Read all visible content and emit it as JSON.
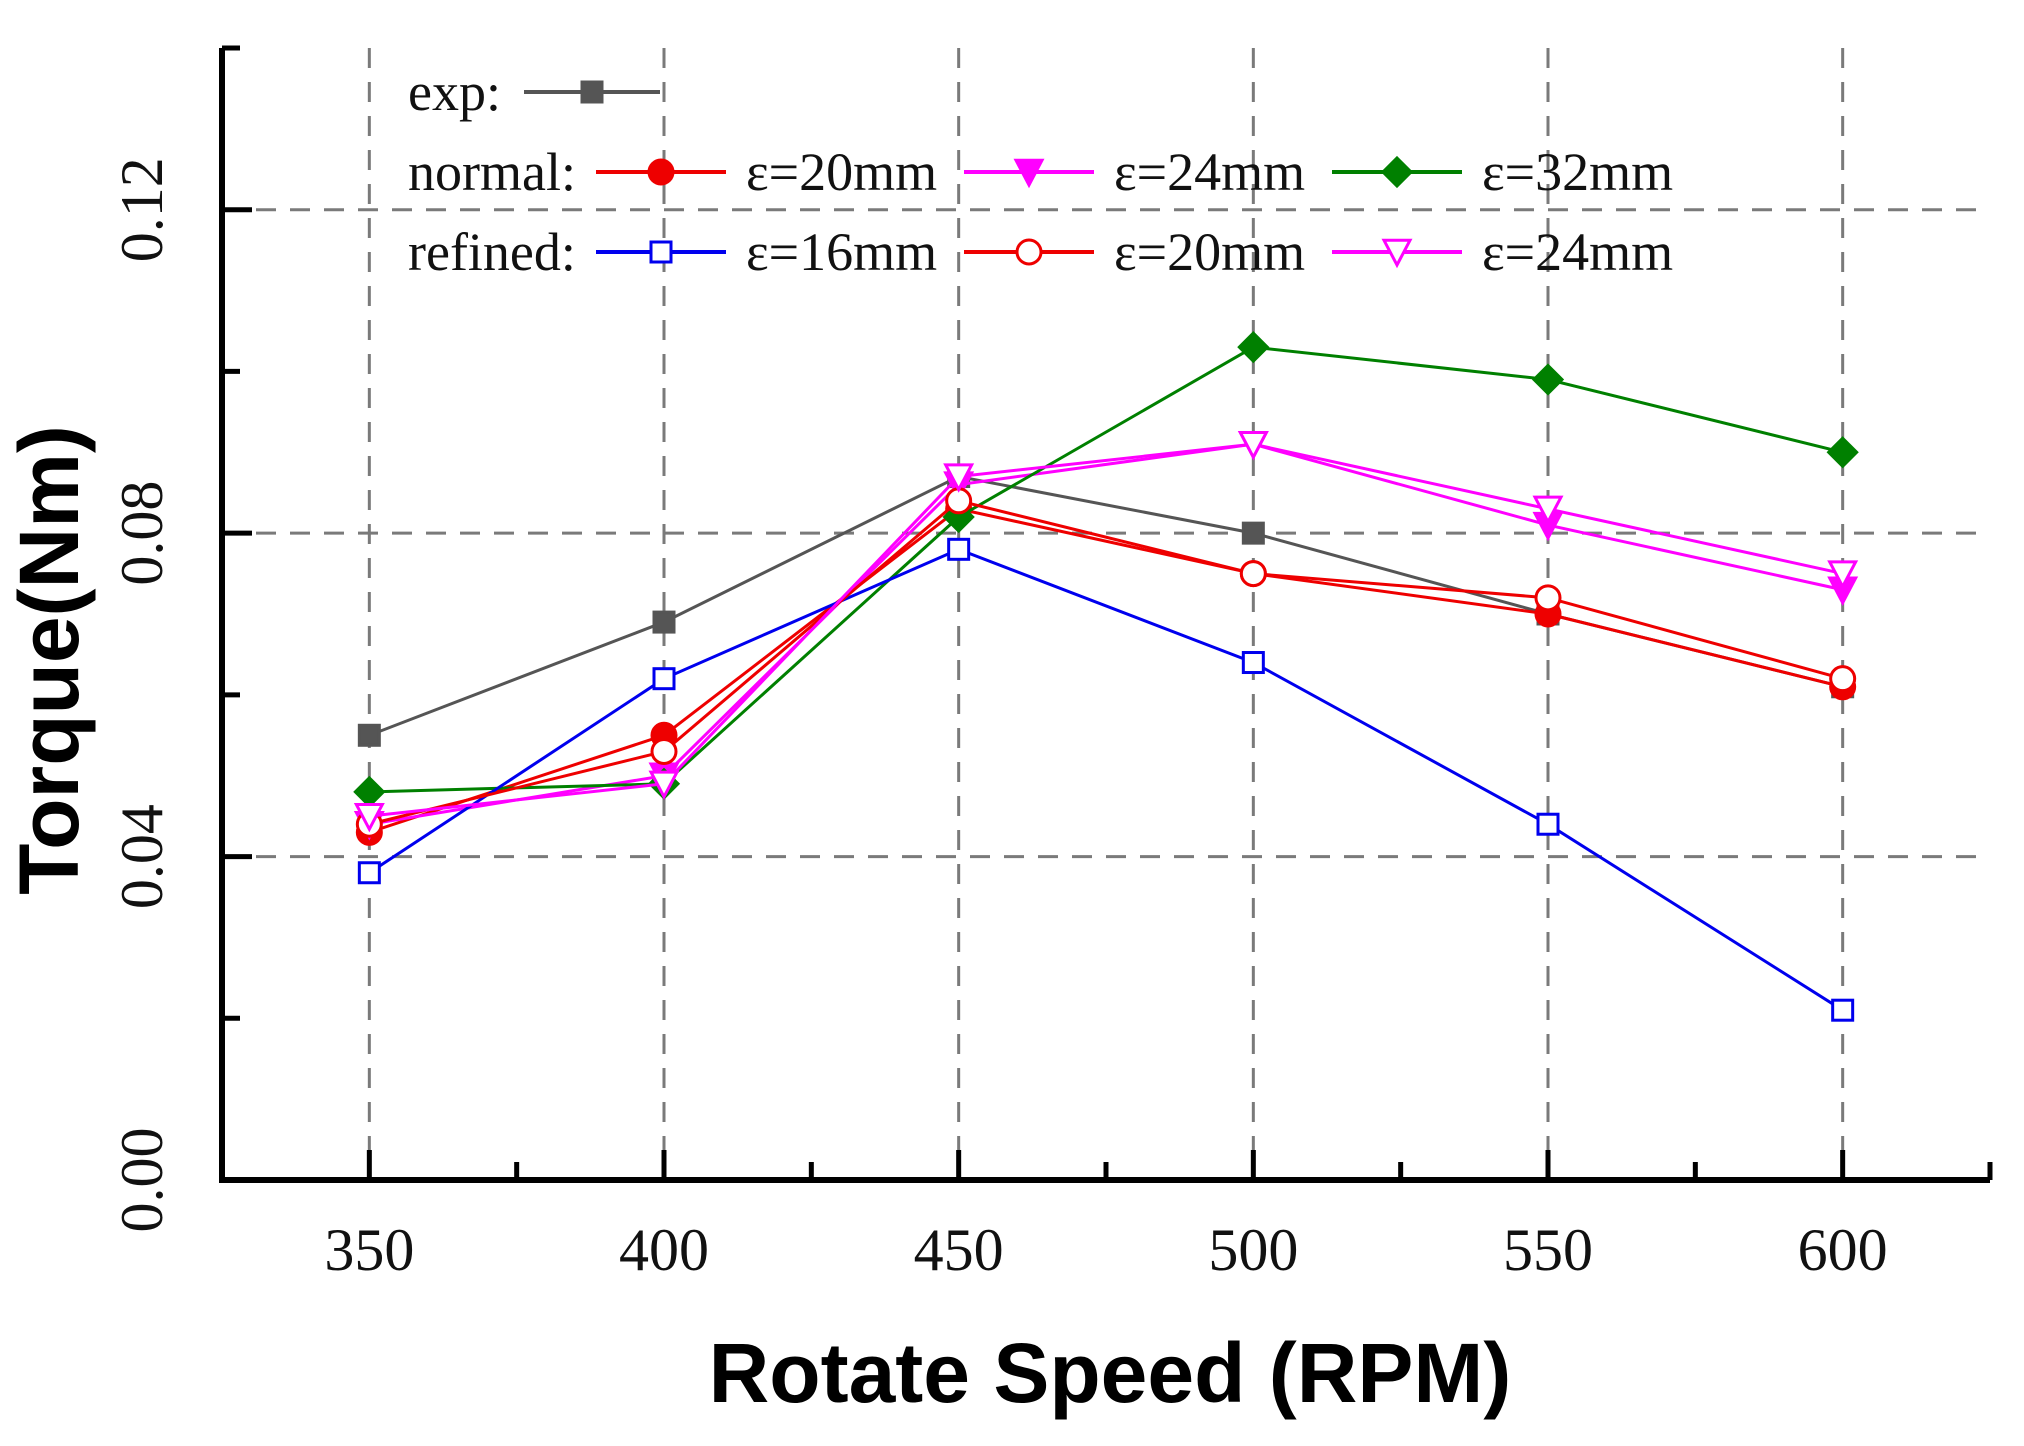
{
  "chart_data": {
    "type": "line",
    "title": "",
    "xlabel": "Rotate Speed (RPM)",
    "ylabel": "Torque(Nm)",
    "x": [
      350,
      400,
      450,
      500,
      550,
      600
    ],
    "x_ticks": [
      "350",
      "400",
      "450",
      "500",
      "550",
      "600"
    ],
    "xlim": [
      325,
      625
    ],
    "y_ticks": [
      "0.00",
      "0.04",
      "0.08",
      "0.12"
    ],
    "y_tick_values": [
      0.0,
      0.04,
      0.08,
      0.12
    ],
    "y_minor_ticks": [
      0.02,
      0.06,
      0.1
    ],
    "ylim": [
      0.0,
      0.14
    ],
    "grid": true,
    "legend_position": "top-left",
    "legend_groups": [
      {
        "label": "exp:",
        "series": [
          0
        ]
      },
      {
        "label": "normal:",
        "series": [
          1,
          2,
          3
        ]
      },
      {
        "label": "refined:",
        "series": [
          4,
          5,
          6
        ]
      }
    ],
    "series": [
      {
        "name": "exp",
        "legend_label": "",
        "color": "#555555",
        "marker": "square-filled",
        "values": [
          0.055,
          0.069,
          0.087,
          0.08,
          0.07,
          0.061
        ]
      },
      {
        "name": "normal ε=20mm",
        "legend_label": "ε=20mm",
        "color": "#ee0000",
        "marker": "circle-filled",
        "values": [
          0.043,
          0.055,
          0.083,
          0.075,
          0.07,
          0.061
        ]
      },
      {
        "name": "normal ε=24mm",
        "legend_label": "ε=24mm",
        "color": "#ff00ff",
        "marker": "triangle-down-filled",
        "values": [
          0.044,
          0.05,
          0.086,
          0.091,
          0.081,
          0.073
        ]
      },
      {
        "name": "normal ε=32mm",
        "legend_label": "ε=32mm",
        "color": "#008000",
        "marker": "diamond-filled",
        "values": [
          0.048,
          0.049,
          0.082,
          0.103,
          0.099,
          0.09
        ]
      },
      {
        "name": "refined ε=16mm",
        "legend_label": "ε=16mm",
        "color": "#0000ee",
        "marker": "square-open",
        "values": [
          0.038,
          0.062,
          0.078,
          0.064,
          0.044,
          0.021
        ]
      },
      {
        "name": "refined ε=20mm",
        "legend_label": "ε=20mm",
        "color": "#ee0000",
        "marker": "circle-open",
        "values": [
          0.044,
          0.053,
          0.084,
          0.075,
          0.072,
          0.062
        ]
      },
      {
        "name": "refined ε=24mm",
        "legend_label": "ε=24mm",
        "color": "#ff00ff",
        "marker": "triangle-down-open",
        "values": [
          0.045,
          0.049,
          0.087,
          0.091,
          0.083,
          0.075
        ]
      }
    ]
  }
}
